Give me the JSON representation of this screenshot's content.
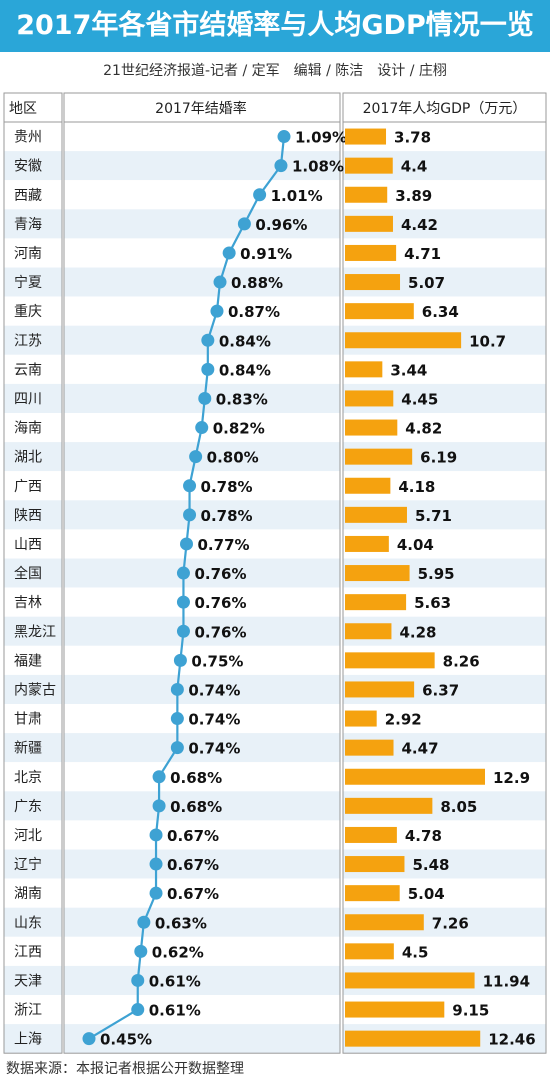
{
  "title": "2017年各省市结婚率与人均GDP情况一览",
  "credits": "21世纪经济报道-记者 / 定军　编辑 / 陈洁　设计 / 庄栩",
  "source": "数据来源：本报记者根据公开数据整理",
  "colors": {
    "header_blue": "#2aa6d8",
    "line_blue": "#3ea2d3",
    "bar_orange": "#f5a20f",
    "row_alt": "#e8f1f8"
  },
  "chart_data": {
    "type": "table",
    "columns": [
      "地区",
      "2017年结婚率",
      "2017年人均GDP（万元）"
    ],
    "rows": [
      {
        "region": "贵州",
        "marriage_rate": 1.09,
        "rate_label": "1.09%",
        "gdp": 3.78,
        "gdp_label": "3.78"
      },
      {
        "region": "安徽",
        "marriage_rate": 1.08,
        "rate_label": "1.08%",
        "gdp": 4.4,
        "gdp_label": "4.4"
      },
      {
        "region": "西藏",
        "marriage_rate": 1.01,
        "rate_label": "1.01%",
        "gdp": 3.89,
        "gdp_label": "3.89"
      },
      {
        "region": "青海",
        "marriage_rate": 0.96,
        "rate_label": "0.96%",
        "gdp": 4.42,
        "gdp_label": "4.42"
      },
      {
        "region": "河南",
        "marriage_rate": 0.91,
        "rate_label": "0.91%",
        "gdp": 4.71,
        "gdp_label": "4.71"
      },
      {
        "region": "宁夏",
        "marriage_rate": 0.88,
        "rate_label": "0.88%",
        "gdp": 5.07,
        "gdp_label": "5.07"
      },
      {
        "region": "重庆",
        "marriage_rate": 0.87,
        "rate_label": "0.87%",
        "gdp": 6.34,
        "gdp_label": "6.34"
      },
      {
        "region": "江苏",
        "marriage_rate": 0.84,
        "rate_label": "0.84%",
        "gdp": 10.7,
        "gdp_label": "10.7"
      },
      {
        "region": "云南",
        "marriage_rate": 0.84,
        "rate_label": "0.84%",
        "gdp": 3.44,
        "gdp_label": "3.44"
      },
      {
        "region": "四川",
        "marriage_rate": 0.83,
        "rate_label": "0.83%",
        "gdp": 4.45,
        "gdp_label": "4.45"
      },
      {
        "region": "海南",
        "marriage_rate": 0.82,
        "rate_label": "0.82%",
        "gdp": 4.82,
        "gdp_label": "4.82"
      },
      {
        "region": "湖北",
        "marriage_rate": 0.8,
        "rate_label": "0.80%",
        "gdp": 6.19,
        "gdp_label": "6.19"
      },
      {
        "region": "广西",
        "marriage_rate": 0.78,
        "rate_label": "0.78%",
        "gdp": 4.18,
        "gdp_label": "4.18"
      },
      {
        "region": "陕西",
        "marriage_rate": 0.78,
        "rate_label": "0.78%",
        "gdp": 5.71,
        "gdp_label": "5.71"
      },
      {
        "region": "山西",
        "marriage_rate": 0.77,
        "rate_label": "0.77%",
        "gdp": 4.04,
        "gdp_label": "4.04"
      },
      {
        "region": "全国",
        "marriage_rate": 0.76,
        "rate_label": "0.76%",
        "gdp": 5.95,
        "gdp_label": "5.95"
      },
      {
        "region": "吉林",
        "marriage_rate": 0.76,
        "rate_label": "0.76%",
        "gdp": 5.63,
        "gdp_label": "5.63"
      },
      {
        "region": "黑龙江",
        "marriage_rate": 0.76,
        "rate_label": "0.76%",
        "gdp": 4.28,
        "gdp_label": "4.28"
      },
      {
        "region": "福建",
        "marriage_rate": 0.75,
        "rate_label": "0.75%",
        "gdp": 8.26,
        "gdp_label": "8.26"
      },
      {
        "region": "内蒙古",
        "marriage_rate": 0.74,
        "rate_label": "0.74%",
        "gdp": 6.37,
        "gdp_label": "6.37"
      },
      {
        "region": "甘肃",
        "marriage_rate": 0.74,
        "rate_label": "0.74%",
        "gdp": 2.92,
        "gdp_label": "2.92"
      },
      {
        "region": "新疆",
        "marriage_rate": 0.74,
        "rate_label": "0.74%",
        "gdp": 4.47,
        "gdp_label": "4.47"
      },
      {
        "region": "北京",
        "marriage_rate": 0.68,
        "rate_label": "0.68%",
        "gdp": 12.9,
        "gdp_label": "12.9"
      },
      {
        "region": "广东",
        "marriage_rate": 0.68,
        "rate_label": "0.68%",
        "gdp": 8.05,
        "gdp_label": "8.05"
      },
      {
        "region": "河北",
        "marriage_rate": 0.67,
        "rate_label": "0.67%",
        "gdp": 4.78,
        "gdp_label": "4.78"
      },
      {
        "region": "辽宁",
        "marriage_rate": 0.67,
        "rate_label": "0.67%",
        "gdp": 5.48,
        "gdp_label": "5.48"
      },
      {
        "region": "湖南",
        "marriage_rate": 0.67,
        "rate_label": "0.67%",
        "gdp": 5.04,
        "gdp_label": "5.04"
      },
      {
        "region": "山东",
        "marriage_rate": 0.63,
        "rate_label": "0.63%",
        "gdp": 7.26,
        "gdp_label": "7.26"
      },
      {
        "region": "江西",
        "marriage_rate": 0.62,
        "rate_label": "0.62%",
        "gdp": 4.5,
        "gdp_label": "4.5"
      },
      {
        "region": "天津",
        "marriage_rate": 0.61,
        "rate_label": "0.61%",
        "gdp": 11.94,
        "gdp_label": "11.94"
      },
      {
        "region": "浙江",
        "marriage_rate": 0.61,
        "rate_label": "0.61%",
        "gdp": 9.15,
        "gdp_label": "9.15"
      },
      {
        "region": "上海",
        "marriage_rate": 0.45,
        "rate_label": "0.45%",
        "gdp": 12.46,
        "gdp_label": "12.46"
      }
    ]
  }
}
